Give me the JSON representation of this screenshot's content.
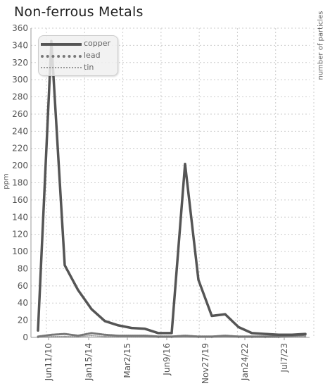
{
  "chart_data": {
    "type": "line",
    "title": "Non-ferrous Metals",
    "ylabel": "ppm",
    "y2label": "number of particles",
    "ylim": [
      0,
      360
    ],
    "yticks": [
      0,
      20,
      40,
      60,
      80,
      100,
      120,
      140,
      160,
      180,
      200,
      220,
      240,
      260,
      280,
      300,
      320,
      340,
      360
    ],
    "xticks": [
      "Jun11/10",
      "Jan15/14",
      "Mar2/15",
      "Jun9/16",
      "Nov27/19",
      "Jan24/22",
      "Jul7/23"
    ],
    "grid": true,
    "legend_position": "top-left",
    "series": [
      {
        "name": "copper",
        "color": "#555555",
        "style": "solid",
        "points": [
          [
            0,
            8
          ],
          [
            1,
            345
          ],
          [
            2,
            84
          ],
          [
            3,
            55
          ],
          [
            4,
            33
          ],
          [
            5,
            19
          ],
          [
            6,
            14
          ],
          [
            7,
            11
          ],
          [
            8,
            10
          ],
          [
            9,
            5
          ],
          [
            10,
            5
          ],
          [
            11,
            202
          ],
          [
            12,
            67
          ],
          [
            13,
            25
          ],
          [
            14,
            27
          ],
          [
            15,
            12
          ],
          [
            16,
            5
          ],
          [
            17,
            4
          ],
          [
            18,
            3
          ],
          [
            19,
            3
          ],
          [
            20,
            4
          ]
        ]
      },
      {
        "name": "lead",
        "color": "#777777",
        "style": "dotted",
        "points": [
          [
            0,
            1
          ],
          [
            1,
            3
          ],
          [
            2,
            4
          ],
          [
            3,
            2
          ],
          [
            4,
            5
          ],
          [
            5,
            3
          ],
          [
            6,
            2
          ],
          [
            7,
            2
          ],
          [
            8,
            2
          ],
          [
            9,
            1
          ],
          [
            10,
            1
          ],
          [
            11,
            2
          ],
          [
            12,
            1
          ],
          [
            13,
            1
          ],
          [
            14,
            2
          ],
          [
            15,
            1
          ],
          [
            16,
            1
          ],
          [
            17,
            1
          ],
          [
            18,
            1
          ],
          [
            19,
            2
          ],
          [
            20,
            3
          ]
        ]
      },
      {
        "name": "tin",
        "color": "#999999",
        "style": "dotted",
        "points": [
          [
            0,
            0
          ],
          [
            1,
            1
          ],
          [
            2,
            1
          ],
          [
            3,
            1
          ],
          [
            4,
            2
          ],
          [
            5,
            1
          ],
          [
            6,
            1
          ],
          [
            7,
            1
          ],
          [
            8,
            1
          ],
          [
            9,
            0
          ],
          [
            10,
            0
          ],
          [
            11,
            1
          ],
          [
            12,
            0
          ],
          [
            13,
            0
          ],
          [
            14,
            1
          ],
          [
            15,
            0
          ],
          [
            16,
            0
          ],
          [
            17,
            0
          ],
          [
            18,
            0
          ],
          [
            19,
            1
          ],
          [
            20,
            1
          ]
        ]
      }
    ]
  }
}
